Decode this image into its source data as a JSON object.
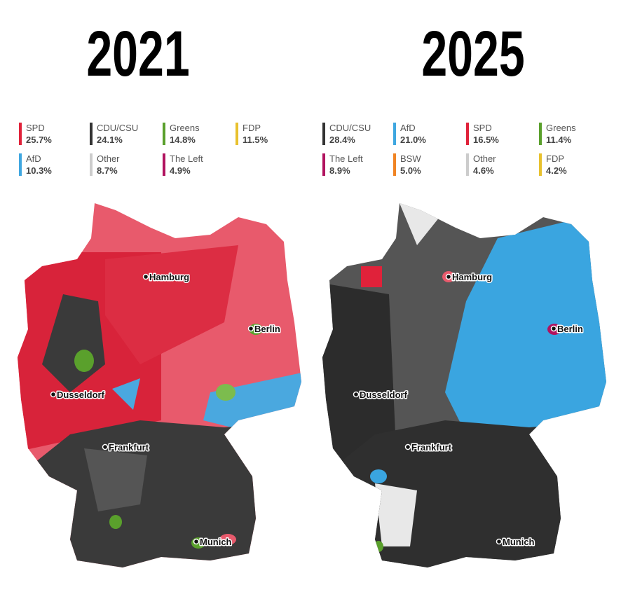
{
  "panels": [
    {
      "title": "2021",
      "legend": [
        {
          "party": "SPD",
          "share": "25.7%",
          "color": "#e0223a"
        },
        {
          "party": "CDU/CSU",
          "share": "24.1%",
          "color": "#333333"
        },
        {
          "party": "Greens",
          "share": "14.8%",
          "color": "#5aa02c"
        },
        {
          "party": "FDP",
          "share": "11.5%",
          "color": "#e8c12e"
        },
        {
          "party": "AfD",
          "share": "10.3%",
          "color": "#3fa7e0"
        },
        {
          "party": "Other",
          "share": "8.7%",
          "color": "#cccccc"
        },
        {
          "party": "The Left",
          "share": "4.9%",
          "color": "#b1135f"
        }
      ],
      "cities": [
        "Hamburg",
        "Berlin",
        "Dusseldorf",
        "Frankfurt",
        "Munich"
      ]
    },
    {
      "title": "2025",
      "legend": [
        {
          "party": "CDU/CSU",
          "share": "28.4%",
          "color": "#333333"
        },
        {
          "party": "AfD",
          "share": "21.0%",
          "color": "#3fa7e0"
        },
        {
          "party": "SPD",
          "share": "16.5%",
          "color": "#e0223a"
        },
        {
          "party": "Greens",
          "share": "11.4%",
          "color": "#5aa02c"
        },
        {
          "party": "The Left",
          "share": "8.9%",
          "color": "#b1135f"
        },
        {
          "party": "BSW",
          "share": "5.0%",
          "color": "#f08424"
        },
        {
          "party": "Other",
          "share": "4.6%",
          "color": "#cccccc"
        },
        {
          "party": "FDP",
          "share": "4.2%",
          "color": "#e8c12e"
        }
      ],
      "cities": [
        "Hamburg",
        "Berlin",
        "Dusseldorf",
        "Frankfurt",
        "Munich"
      ]
    }
  ]
}
